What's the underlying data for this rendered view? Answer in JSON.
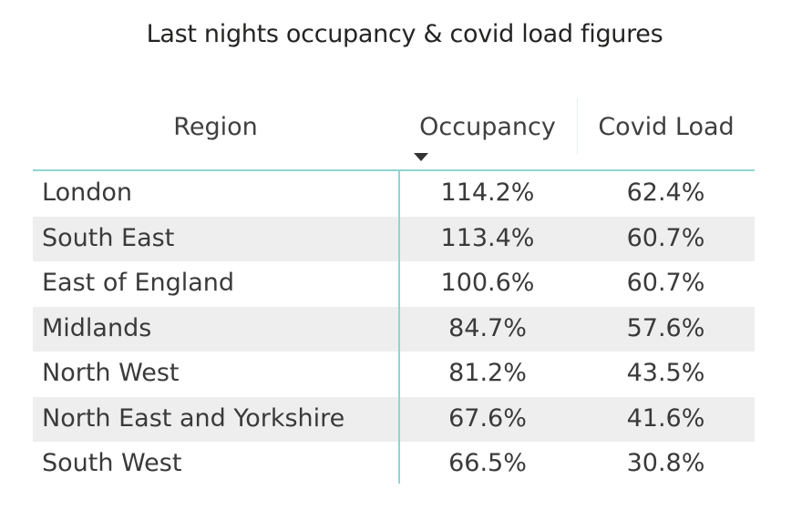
{
  "chart_data": {
    "type": "table",
    "title": "Last nights occupancy & covid load figures",
    "columns": [
      "Region",
      "Occupancy",
      "Covid Load"
    ],
    "sort": {
      "column": "Occupancy",
      "direction": "descending"
    },
    "rows": [
      {
        "region": "London",
        "occupancy": "114.2%",
        "covid_load": "62.4%"
      },
      {
        "region": "South East",
        "occupancy": "113.4%",
        "covid_load": "60.7%"
      },
      {
        "region": "East of England",
        "occupancy": "100.6%",
        "covid_load": "60.7%"
      },
      {
        "region": "Midlands",
        "occupancy": "84.7%",
        "covid_load": "57.6%"
      },
      {
        "region": "North West",
        "occupancy": "81.2%",
        "covid_load": "43.5%"
      },
      {
        "region": "North East and Yorkshire",
        "occupancy": "67.6%",
        "covid_load": "41.6%"
      },
      {
        "region": "South West",
        "occupancy": "66.5%",
        "covid_load": "30.8%"
      }
    ]
  },
  "colors": {
    "accent": "#8fd4d2",
    "alt_row": "#eeeeee"
  }
}
